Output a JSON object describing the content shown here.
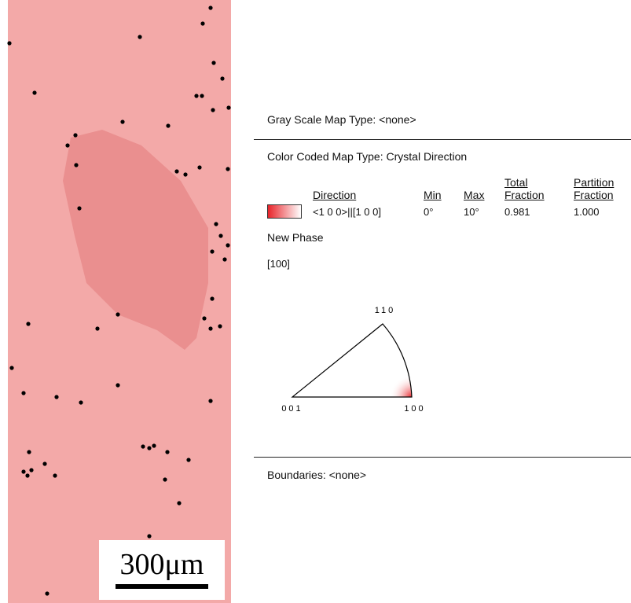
{
  "map": {
    "scale_bar": "300μm"
  },
  "legend": {
    "gray_scale": "Gray Scale Map Type: <none>",
    "color_coded": "Color Coded Map Type: Crystal Direction",
    "table": {
      "headers": [
        "Direction",
        "Min",
        "Max",
        "Total Fraction",
        "Partition Fraction"
      ],
      "rows": [
        [
          "<1 0 0>||[1 0 0]",
          "0°",
          "10°",
          "0.981",
          "1.000"
        ]
      ]
    },
    "phase": "New Phase",
    "direction": "[100]",
    "triangle": {
      "top": "110",
      "left": "001",
      "right": "100"
    },
    "boundaries": "Boundaries: <none>"
  }
}
